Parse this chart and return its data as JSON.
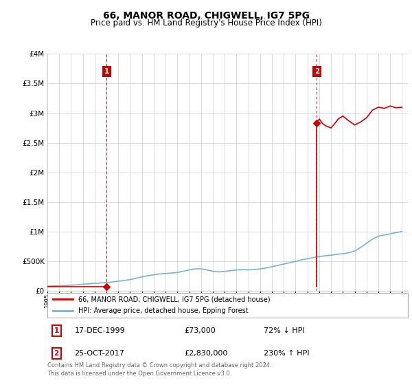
{
  "title": "66, MANOR ROAD, CHIGWELL, IG7 5PG",
  "subtitle": "Price paid vs. HM Land Registry's House Price Index (HPI)",
  "title_fontsize": 10,
  "subtitle_fontsize": 8.5,
  "legend_line1": "66, MANOR ROAD, CHIGWELL, IG7 5PG (detached house)",
  "legend_line2": "HPI: Average price, detached house, Epping Forest",
  "transaction1_date": "17-DEC-1999",
  "transaction1_price": "£73,000",
  "transaction1_hpi": "72% ↓ HPI",
  "transaction1_year": 2000.0,
  "transaction1_value": 73000,
  "transaction2_date": "25-OCT-2017",
  "transaction2_price": "£2,830,000",
  "transaction2_hpi": "230% ↑ HPI",
  "transaction2_year": 2017.8,
  "transaction2_value": 2830000,
  "footer": "Contains HM Land Registry data © Crown copyright and database right 2024.\nThis data is licensed under the Open Government Licence v3.0.",
  "red_color": "#cc0000",
  "blue_color": "#7ab0d4",
  "ylim": [
    0,
    4000000
  ],
  "xlim_start": 1995.0,
  "xlim_end": 2025.5,
  "hpi_years": [
    1995.0,
    1995.5,
    1996.0,
    1996.5,
    1997.0,
    1997.5,
    1998.0,
    1998.5,
    1999.0,
    1999.5,
    2000.0,
    2000.5,
    2001.0,
    2001.5,
    2002.0,
    2002.5,
    2003.0,
    2003.5,
    2004.0,
    2004.5,
    2005.0,
    2005.5,
    2006.0,
    2006.5,
    2007.0,
    2007.5,
    2008.0,
    2008.5,
    2009.0,
    2009.5,
    2010.0,
    2010.5,
    2011.0,
    2011.5,
    2012.0,
    2012.5,
    2013.0,
    2013.5,
    2014.0,
    2014.5,
    2015.0,
    2015.5,
    2016.0,
    2016.5,
    2017.0,
    2017.5,
    2018.0,
    2018.5,
    2019.0,
    2019.5,
    2020.0,
    2020.5,
    2021.0,
    2021.5,
    2022.0,
    2022.5,
    2023.0,
    2023.5,
    2024.0,
    2024.5,
    2025.0
  ],
  "hpi_values": [
    78000,
    80000,
    83000,
    87000,
    93000,
    100000,
    108000,
    116000,
    124000,
    130000,
    138000,
    148000,
    160000,
    172000,
    188000,
    210000,
    232000,
    252000,
    268000,
    282000,
    290000,
    298000,
    308000,
    328000,
    352000,
    368000,
    370000,
    350000,
    328000,
    318000,
    325000,
    338000,
    350000,
    355000,
    352000,
    358000,
    368000,
    385000,
    405000,
    428000,
    450000,
    472000,
    495000,
    520000,
    540000,
    560000,
    575000,
    590000,
    600000,
    615000,
    625000,
    640000,
    670000,
    730000,
    800000,
    870000,
    920000,
    940000,
    960000,
    980000,
    1000000
  ],
  "red_flat_years": [
    1995.0,
    2000.0
  ],
  "red_flat_values": [
    73000,
    73000
  ],
  "red_post_years": [
    2017.8,
    2018.0,
    2018.3,
    2018.6,
    2019.0,
    2019.3,
    2019.6,
    2020.0,
    2020.5,
    2021.0,
    2021.5,
    2022.0,
    2022.5,
    2023.0,
    2023.5,
    2024.0,
    2024.5,
    2025.0
  ],
  "red_post_values": [
    2830000,
    2900000,
    2820000,
    2780000,
    2750000,
    2820000,
    2900000,
    2950000,
    2870000,
    2800000,
    2850000,
    2920000,
    3050000,
    3100000,
    3080000,
    3120000,
    3090000,
    3100000
  ]
}
